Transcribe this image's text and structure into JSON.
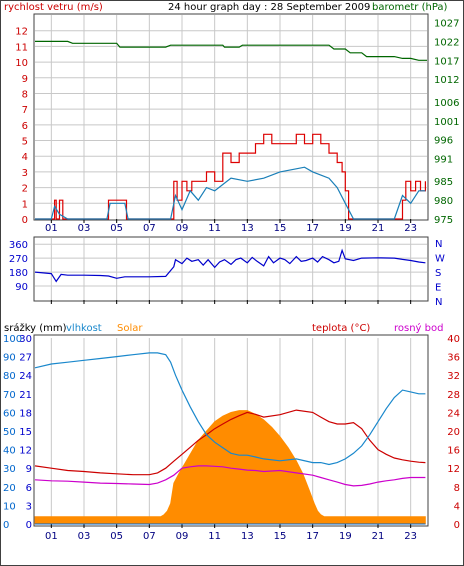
{
  "header": {
    "title": "24 hour graph day : 28 September 2009",
    "left_label": "rychlost vetru (m/s)",
    "right_label": "barometr (hPa)"
  },
  "colors": {
    "wind": "#dd0000",
    "gust": "#1a7fb8",
    "pressure": "#006600",
    "direction": "#0000cc",
    "temperature": "#cc0000",
    "humidity": "#1a88cc",
    "dew": "#cc00cc",
    "solar": "#ff8c00",
    "rain": "#0066cc",
    "axis_blue": "#0066cc",
    "grid": "#c8c8c8"
  },
  "time_ticks": [
    "01",
    "03",
    "05",
    "07",
    "09",
    "11",
    "13",
    "15",
    "17",
    "19",
    "21",
    "23"
  ],
  "chart_data": [
    {
      "type": "line",
      "id": "wind_pressure",
      "ylim_left": [
        0,
        13
      ],
      "yticks_left": [
        "0",
        "1",
        "2",
        "3",
        "4",
        "5",
        "6",
        "7",
        "8",
        "9",
        "10",
        "11",
        "12"
      ],
      "ylim_right": [
        975,
        1029
      ],
      "yticks_right": [
        "975",
        "980",
        "985",
        "991",
        "996",
        "1001",
        "1006",
        "1012",
        "1017",
        "1022",
        "1027"
      ],
      "xlim": [
        0,
        24
      ],
      "series": [
        {
          "role": "wind_speed",
          "x": [
            0.0,
            0.5,
            1.0,
            1.2,
            1.3,
            1.5,
            1.7,
            2.0,
            3.0,
            4.0,
            4.4,
            4.5,
            5.0,
            5.5,
            5.6,
            6.0,
            7.0,
            8.0,
            8.3,
            8.5,
            8.7,
            9.0,
            9.3,
            9.6,
            10.0,
            10.5,
            11.0,
            11.5,
            12.0,
            12.5,
            13.0,
            13.5,
            14.0,
            14.5,
            15.0,
            15.5,
            16.0,
            16.5,
            17.0,
            17.5,
            18.0,
            18.5,
            18.8,
            19.0,
            19.2,
            19.5,
            20.0,
            21.0,
            22.0,
            22.5,
            22.7,
            23.0,
            23.3,
            23.6,
            23.9
          ],
          "y": [
            0,
            0,
            0,
            1.2,
            0,
            1.2,
            0,
            0,
            0,
            0,
            0,
            1.2,
            1.2,
            1.2,
            0,
            0,
            0,
            0,
            0,
            2.4,
            1.2,
            2.4,
            1.8,
            2.4,
            2.4,
            3.0,
            2.4,
            4.2,
            3.6,
            4.2,
            4.2,
            4.8,
            5.4,
            4.8,
            4.8,
            4.8,
            5.4,
            4.8,
            5.4,
            4.8,
            4.2,
            3.6,
            3.0,
            1.8,
            0,
            0,
            0,
            0,
            0,
            1.2,
            2.4,
            1.8,
            2.4,
            1.8,
            2.4
          ]
        },
        {
          "role": "wind_average",
          "x": [
            0.0,
            1.0,
            1.2,
            1.5,
            2.0,
            4.4,
            4.6,
            5.0,
            5.5,
            5.7,
            8.3,
            8.6,
            9.0,
            9.5,
            10.0,
            10.5,
            11.0,
            11.5,
            12.0,
            13.0,
            14.0,
            15.0,
            16.0,
            16.5,
            17.0,
            17.5,
            18.0,
            18.5,
            19.0,
            19.5,
            22.0,
            22.5,
            23.0,
            23.5,
            23.9
          ],
          "y": [
            0,
            0,
            0.8,
            0.3,
            0,
            0,
            1.0,
            1.0,
            1.0,
            0,
            0,
            1.5,
            0.6,
            1.8,
            1.2,
            2.0,
            1.8,
            2.2,
            2.6,
            2.4,
            2.6,
            3.0,
            3.2,
            3.3,
            3.0,
            2.8,
            2.6,
            2.0,
            1.0,
            0,
            0,
            1.5,
            1.0,
            1.8,
            1.8
          ]
        },
        {
          "role": "pressure",
          "x": [
            0,
            2,
            2.3,
            5,
            5.2,
            8,
            8.3,
            11.5,
            11.6,
            12.5,
            12.7,
            18,
            18.3,
            19,
            19.3,
            20,
            20.3,
            22,
            22.5,
            23,
            23.5,
            24
          ],
          "y": [
            1022,
            1022,
            1021.5,
            1021.5,
            1020.5,
            1020.5,
            1021,
            1021,
            1020.5,
            1020.5,
            1021,
            1021,
            1020,
            1020,
            1019,
            1019,
            1018,
            1018,
            1017.5,
            1017.5,
            1017,
            1017
          ]
        }
      ]
    },
    {
      "type": "line",
      "id": "wind_direction",
      "ylim": [
        0,
        400
      ],
      "yticks": [
        "90",
        "180",
        "270",
        "360"
      ],
      "direction_labels": [
        "N",
        "W",
        "S",
        "E",
        "N"
      ],
      "xlim": [
        0,
        24
      ],
      "series": [
        {
          "role": "direction",
          "x": [
            0,
            0.5,
            1.0,
            1.3,
            1.6,
            2.0,
            3.0,
            4.0,
            4.5,
            5.0,
            5.5,
            6.0,
            7.0,
            8.0,
            8.5,
            8.6,
            9.0,
            9.3,
            9.6,
            10.0,
            10.3,
            10.6,
            11.0,
            11.3,
            11.6,
            12.0,
            12.3,
            12.6,
            13.0,
            13.3,
            13.6,
            14.0,
            14.3,
            14.6,
            15.0,
            15.3,
            15.6,
            16.0,
            16.3,
            16.6,
            17.0,
            17.3,
            17.6,
            18.0,
            18.3,
            18.6,
            18.8,
            19.0,
            19.5,
            20,
            21,
            22,
            22.5,
            23,
            23.5,
            23.9
          ],
          "y": [
            180,
            175,
            170,
            120,
            165,
            160,
            160,
            158,
            155,
            140,
            150,
            150,
            150,
            152,
            215,
            260,
            235,
            270,
            250,
            260,
            225,
            260,
            210,
            245,
            260,
            230,
            260,
            270,
            240,
            275,
            250,
            220,
            280,
            240,
            270,
            260,
            235,
            280,
            250,
            255,
            270,
            245,
            280,
            260,
            240,
            250,
            320,
            265,
            255,
            270,
            272,
            270,
            262,
            255,
            245,
            240
          ]
        }
      ]
    },
    {
      "type": "line",
      "id": "thermo_hygro",
      "ylim_rain": [
        0,
        30
      ],
      "yticks_rain": [
        "0",
        "3",
        "6",
        "9",
        "12",
        "15",
        "18",
        "21",
        "24",
        "27",
        "30"
      ],
      "ylim_humidity": [
        0,
        100
      ],
      "yticks_humidity": [
        "0",
        "10",
        "20",
        "30",
        "40",
        "50",
        "60",
        "70",
        "80",
        "90",
        "100"
      ],
      "ylim_solar": [
        0,
        100
      ],
      "ylim_temperature": [
        0,
        40
      ],
      "yticks_temperature": [
        "0",
        "4",
        "8",
        "12",
        "16",
        "20",
        "24",
        "28",
        "32",
        "36",
        "40"
      ],
      "legend": [
        "srážky (mm)",
        "vlhkost",
        "Solar",
        "teplota (°C)",
        "rosný bod"
      ],
      "xlim": [
        0,
        24
      ],
      "series": [
        {
          "role": "humidity",
          "x": [
            0,
            1,
            2,
            3,
            4,
            5,
            6,
            7,
            7.5,
            8,
            8.3,
            8.6,
            9,
            9.5,
            10,
            10.5,
            11,
            11.5,
            12,
            12.5,
            13,
            13.5,
            14,
            15,
            16,
            17,
            17.5,
            18,
            18.5,
            19,
            19.5,
            20,
            20.5,
            21,
            21.5,
            22,
            22.5,
            23,
            23.5,
            23.9
          ],
          "y": [
            84,
            86,
            87,
            88,
            89,
            90,
            91,
            92,
            92,
            91,
            87,
            80,
            72,
            63,
            55,
            48,
            44,
            41,
            38,
            37,
            37,
            36,
            35,
            34,
            35,
            33,
            33,
            32,
            33,
            35,
            38,
            42,
            48,
            55,
            62,
            68,
            72,
            71,
            70,
            70
          ]
        },
        {
          "role": "temperature",
          "x": [
            0,
            1,
            2,
            3,
            4,
            5,
            6,
            7,
            7.5,
            8,
            8.5,
            9,
            9.5,
            10,
            10.5,
            11,
            11.5,
            12,
            12.5,
            13,
            13.5,
            14,
            15,
            16,
            17,
            17.5,
            18,
            18.5,
            19,
            19.5,
            20,
            20.5,
            21,
            21.5,
            22,
            22.5,
            23,
            23.5,
            23.9
          ],
          "y": [
            12.5,
            12,
            11.5,
            11.3,
            11,
            10.8,
            10.6,
            10.6,
            11,
            12,
            13.5,
            15,
            16.5,
            18,
            19.2,
            20.5,
            21.5,
            22.5,
            23.3,
            24,
            23.6,
            23,
            23.5,
            24.5,
            24,
            23,
            22,
            21.5,
            21.5,
            21.8,
            20.5,
            18,
            16,
            15,
            14.2,
            13.8,
            13.5,
            13.3,
            13.2
          ]
        },
        {
          "role": "dew_point",
          "x": [
            0,
            1,
            2,
            3,
            4,
            5,
            6,
            7,
            7.5,
            8,
            8.5,
            9,
            9.5,
            10,
            10.5,
            11,
            11.5,
            12,
            12.5,
            13,
            13.5,
            14,
            15,
            16,
            17,
            17.5,
            18,
            18.5,
            19,
            19.5,
            20,
            20.5,
            21,
            21.5,
            22,
            22.5,
            23,
            23.5,
            23.9
          ],
          "y": [
            9.5,
            9.3,
            9.2,
            9,
            8.8,
            8.7,
            8.6,
            8.5,
            8.8,
            9.5,
            10.5,
            12,
            12.3,
            12.5,
            12.5,
            12.4,
            12.3,
            12,
            11.8,
            11.6,
            11.5,
            11.3,
            11.5,
            11,
            10.5,
            10,
            9.5,
            9,
            8.5,
            8.2,
            8.3,
            8.6,
            9,
            9.3,
            9.5,
            9.8,
            10,
            10,
            10
          ]
        },
        {
          "role": "solar",
          "x": [
            0,
            7,
            7.7,
            7.9,
            8.1,
            8.3,
            8.5,
            8.8,
            9.2,
            9.6,
            10,
            10.5,
            11,
            11.5,
            12,
            12.5,
            13,
            13.5,
            14,
            14.5,
            15,
            15.5,
            16,
            16.4,
            16.8,
            17.1,
            17.3,
            17.5,
            17.7,
            18,
            20,
            22,
            23,
            23.9
          ],
          "y": [
            4,
            4,
            4,
            5,
            7,
            11,
            22,
            27,
            33,
            39,
            45,
            50,
            55,
            58,
            60,
            61,
            61,
            59,
            56,
            52,
            47,
            41,
            34,
            27,
            18,
            11,
            7,
            5,
            4,
            4,
            4,
            4,
            4,
            4
          ]
        },
        {
          "role": "rain",
          "x": [
            0,
            23.9
          ],
          "y": [
            0,
            0
          ]
        }
      ]
    }
  ]
}
